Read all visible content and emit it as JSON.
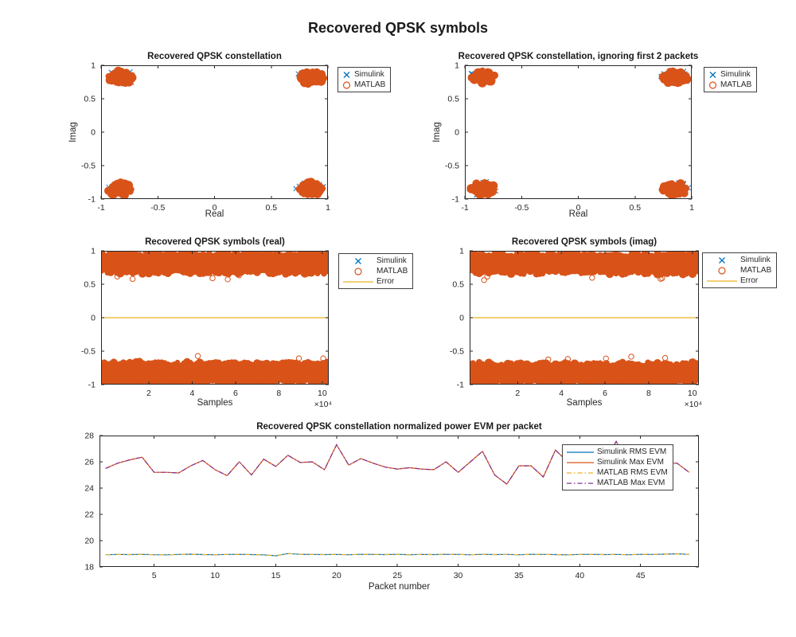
{
  "figure": {
    "title": "Recovered QPSK symbols",
    "background": "#ffffff"
  },
  "colors": {
    "blue": "#0072BD",
    "orange": "#D95319",
    "yellow": "#EDB120",
    "purple": "#7E2F8E",
    "axis": "#262626",
    "text": "#262626"
  },
  "chart_data": [
    {
      "id": "const1",
      "type": "scatter",
      "title": "Recovered QPSK constellation",
      "xlabel": "Real",
      "ylabel": "Imag",
      "xlim": [
        -1,
        1
      ],
      "ylim": [
        -1,
        1
      ],
      "xticks": {
        "vals": [
          -1,
          -0.5,
          0,
          0.5,
          1
        ],
        "labels": [
          "-1",
          "-0.5",
          "0",
          "0.5",
          "1"
        ]
      },
      "yticks": {
        "vals": [
          -1,
          -0.5,
          0,
          0.5,
          1
        ],
        "labels": [
          "-1",
          "-0.5",
          "0",
          "0.5",
          "1"
        ]
      },
      "seed": 11,
      "clusters": [
        {
          "cx": -0.83,
          "cy": 0.82,
          "rx": 0.115,
          "ry": 0.1
        },
        {
          "cx": 0.85,
          "cy": 0.82,
          "rx": 0.11,
          "ry": 0.1
        },
        {
          "cx": -0.83,
          "cy": -0.85,
          "rx": 0.11,
          "ry": 0.1
        },
        {
          "cx": 0.85,
          "cy": -0.85,
          "rx": 0.115,
          "ry": 0.1
        }
      ],
      "legend": [
        {
          "label": "Simulink",
          "marker": "x",
          "color": "#0072BD"
        },
        {
          "label": "MATLAB",
          "marker": "o",
          "color": "#D95319"
        }
      ]
    },
    {
      "id": "const2",
      "type": "scatter",
      "title": "Recovered QPSK constellation, ignoring first 2 packets",
      "xlabel": "Real",
      "ylabel": "Imag",
      "xlim": [
        -1,
        1
      ],
      "ylim": [
        -1,
        1
      ],
      "xticks": {
        "vals": [
          -1,
          -0.5,
          0,
          0.5,
          1
        ],
        "labels": [
          "-1",
          "-0.5",
          "0",
          "0.5",
          "1"
        ]
      },
      "yticks": {
        "vals": [
          -1,
          -0.5,
          0,
          0.5,
          1
        ],
        "labels": [
          "-1",
          "-0.5",
          "0",
          "0.5",
          "1"
        ]
      },
      "seed": 23,
      "clusters": [
        {
          "cx": -0.84,
          "cy": 0.83,
          "rx": 0.105,
          "ry": 0.095
        },
        {
          "cx": 0.85,
          "cy": 0.82,
          "rx": 0.11,
          "ry": 0.1
        },
        {
          "cx": -0.84,
          "cy": -0.85,
          "rx": 0.105,
          "ry": 0.1
        },
        {
          "cx": 0.85,
          "cy": -0.85,
          "rx": 0.11,
          "ry": 0.1
        }
      ],
      "legend": [
        {
          "label": "Simulink",
          "marker": "x",
          "color": "#0072BD"
        },
        {
          "label": "MATLAB",
          "marker": "o",
          "color": "#D95319"
        }
      ]
    },
    {
      "id": "real",
      "type": "bands",
      "title": "Recovered QPSK symbols (real)",
      "xlabel": "Samples",
      "xlim": [
        -0.2,
        10.3
      ],
      "ylim": [
        -1,
        1
      ],
      "xticks": {
        "vals": [
          2,
          4,
          6,
          8,
          10
        ],
        "labels": [
          "2",
          "4",
          "6",
          "8",
          "10"
        ]
      },
      "yticks": {
        "vals": [
          -1,
          -0.5,
          0,
          0.5,
          1
        ],
        "labels": [
          "-1",
          "-0.5",
          "0",
          "0.5",
          "1"
        ]
      },
      "multiplier": "×10⁴",
      "seed": 5,
      "bands": [
        {
          "center": 0.815,
          "half": 0.13
        },
        {
          "center": -0.82,
          "half": 0.135
        }
      ],
      "error_y": 0,
      "legend": [
        {
          "label": "Simulink",
          "marker": "x",
          "color": "#0072BD"
        },
        {
          "label": "MATLAB",
          "marker": "o",
          "color": "#D95319"
        },
        {
          "label": "Error",
          "marker": "line",
          "color": "#EDB120"
        }
      ]
    },
    {
      "id": "imag",
      "type": "bands",
      "title": "Recovered QPSK symbols (imag)",
      "xlabel": "Samples",
      "xlim": [
        -0.2,
        10.3
      ],
      "ylim": [
        -1,
        1
      ],
      "xticks": {
        "vals": [
          2,
          4,
          6,
          8,
          10
        ],
        "labels": [
          "2",
          "4",
          "6",
          "8",
          "10"
        ]
      },
      "yticks": {
        "vals": [
          -1,
          -0.5,
          0,
          0.5,
          1
        ],
        "labels": [
          "-1",
          "-0.5",
          "0",
          "0.5",
          "1"
        ]
      },
      "multiplier": "×10⁴",
      "seed": 9,
      "bands": [
        {
          "center": 0.81,
          "half": 0.13
        },
        {
          "center": -0.825,
          "half": 0.13
        }
      ],
      "error_y": 0,
      "legend": [
        {
          "label": "Simulink",
          "marker": "x",
          "color": "#0072BD"
        },
        {
          "label": "MATLAB",
          "marker": "o",
          "color": "#D95319"
        },
        {
          "label": "Error",
          "marker": "line",
          "color": "#EDB120"
        }
      ]
    },
    {
      "id": "evm",
      "type": "line",
      "title": "Recovered QPSK constellation normalized power EVM per packet",
      "xlabel": "Packet number",
      "xlim": [
        0.5,
        49.8
      ],
      "ylim": [
        18,
        28
      ],
      "xticks": {
        "vals": [
          5,
          10,
          15,
          20,
          25,
          30,
          35,
          40,
          45
        ],
        "labels": [
          "5",
          "10",
          "15",
          "20",
          "25",
          "30",
          "35",
          "40",
          "45"
        ]
      },
      "yticks": {
        "vals": [
          18,
          20,
          22,
          24,
          26,
          28
        ],
        "labels": [
          "18",
          "20",
          "22",
          "24",
          "26",
          "28"
        ]
      },
      "x": [
        1,
        2,
        3,
        4,
        5,
        6,
        7,
        8,
        9,
        10,
        11,
        12,
        13,
        14,
        15,
        16,
        17,
        18,
        19,
        20,
        21,
        22,
        23,
        24,
        25,
        26,
        27,
        28,
        29,
        30,
        31,
        32,
        33,
        34,
        35,
        36,
        37,
        38,
        39,
        40,
        41,
        42,
        43,
        44,
        45,
        46,
        47,
        48,
        49
      ],
      "series": [
        {
          "name": "Simulink RMS EVM",
          "color": "#0072BD",
          "style": "solid",
          "values": [
            18.93,
            18.95,
            18.94,
            18.96,
            18.93,
            18.92,
            18.95,
            18.97,
            18.94,
            18.93,
            18.95,
            18.96,
            18.94,
            18.92,
            18.85,
            19.02,
            18.96,
            18.95,
            18.94,
            18.95,
            18.93,
            18.96,
            18.95,
            18.94,
            18.96,
            18.93,
            18.95,
            18.94,
            18.96,
            18.95,
            18.93,
            18.96,
            18.94,
            18.95,
            18.93,
            18.96,
            18.95,
            18.94,
            18.92,
            18.95,
            18.96,
            18.94,
            18.95,
            18.93,
            18.96,
            18.95,
            18.97,
            19.0,
            18.95
          ]
        },
        {
          "name": "Simulink Max EVM",
          "color": "#D95319",
          "style": "solid",
          "values": [
            25.5,
            25.9,
            26.15,
            26.35,
            25.2,
            25.2,
            25.15,
            25.7,
            26.1,
            25.4,
            24.95,
            26.0,
            25.0,
            26.2,
            25.65,
            26.5,
            25.95,
            26.0,
            25.4,
            27.3,
            25.75,
            26.25,
            25.9,
            25.6,
            25.45,
            25.55,
            25.45,
            25.4,
            26.0,
            25.2,
            26.0,
            26.8,
            25.0,
            24.3,
            25.7,
            25.7,
            24.85,
            26.9,
            26.0,
            25.8,
            25.7,
            25.9,
            27.55,
            25.9,
            25.7,
            25.8,
            25.9,
            25.9,
            25.2
          ]
        },
        {
          "name": "MATLAB RMS EVM",
          "color": "#EDB120",
          "style": "dashdot",
          "values": [
            18.93,
            18.95,
            18.94,
            18.96,
            18.93,
            18.92,
            18.95,
            18.97,
            18.94,
            18.93,
            18.95,
            18.96,
            18.94,
            18.92,
            18.85,
            19.02,
            18.96,
            18.95,
            18.94,
            18.95,
            18.93,
            18.96,
            18.95,
            18.94,
            18.96,
            18.93,
            18.95,
            18.94,
            18.96,
            18.95,
            18.93,
            18.96,
            18.94,
            18.95,
            18.93,
            18.96,
            18.95,
            18.94,
            18.92,
            18.95,
            18.96,
            18.94,
            18.95,
            18.93,
            18.96,
            18.95,
            18.97,
            19.0,
            18.95
          ]
        },
        {
          "name": "MATLAB Max EVM",
          "color": "#7E2F8E",
          "style": "dashdot",
          "values": [
            25.5,
            25.9,
            26.15,
            26.35,
            25.2,
            25.2,
            25.15,
            25.7,
            26.1,
            25.4,
            24.95,
            26.0,
            25.0,
            26.2,
            25.65,
            26.5,
            25.95,
            26.0,
            25.4,
            27.3,
            25.75,
            26.25,
            25.9,
            25.6,
            25.45,
            25.55,
            25.45,
            25.4,
            26.0,
            25.2,
            26.0,
            26.8,
            25.0,
            24.3,
            25.7,
            25.7,
            24.85,
            26.9,
            26.0,
            25.8,
            25.7,
            25.9,
            27.55,
            25.9,
            25.7,
            25.8,
            25.9,
            25.9,
            25.2
          ]
        }
      ]
    }
  ]
}
